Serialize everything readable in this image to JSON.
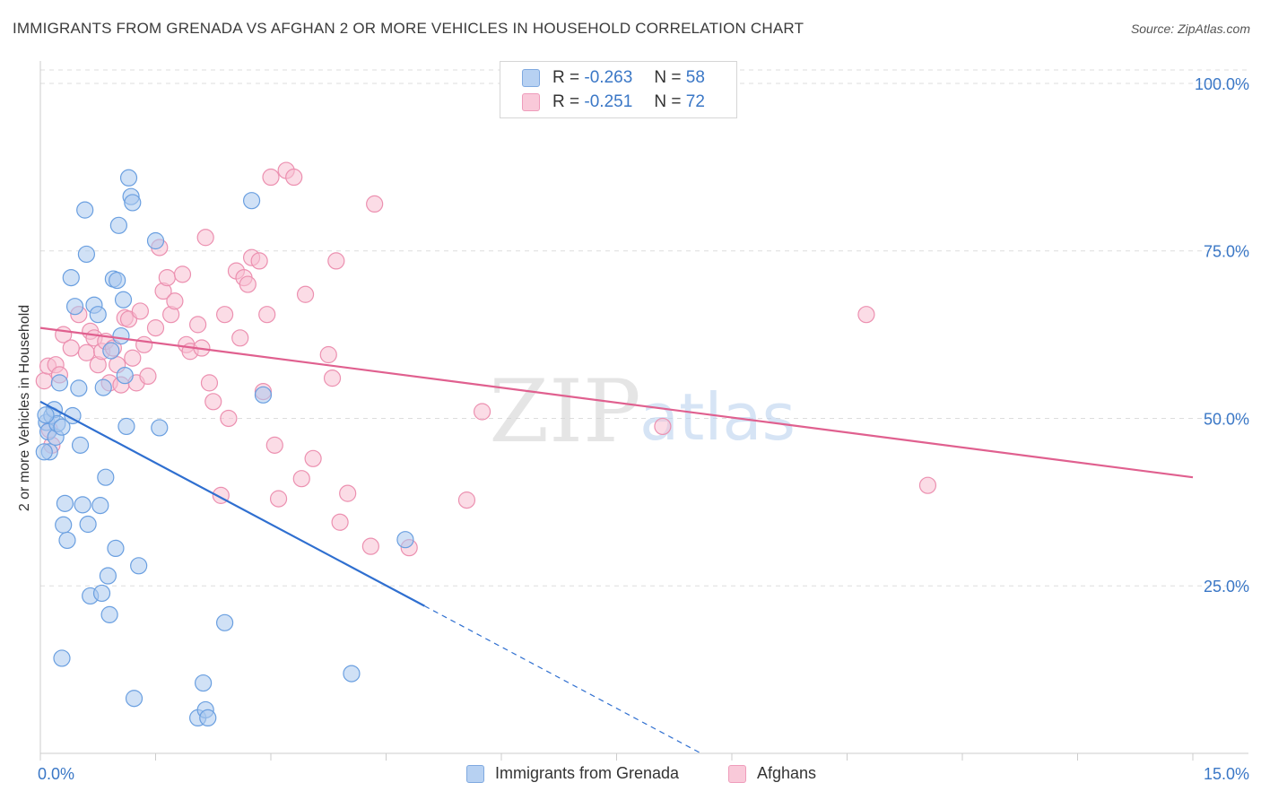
{
  "header": {
    "title": "IMMIGRANTS FROM GRENADA VS AFGHAN 2 OR MORE VEHICLES IN HOUSEHOLD CORRELATION CHART",
    "source": "Source: ZipAtlas.com"
  },
  "watermark": {
    "zip": "ZIP",
    "atlas": "atlas"
  },
  "legend": {
    "rows": [
      {
        "r_label": "R =",
        "r_value": "-0.263",
        "n_label": "N =",
        "n_value": "58"
      },
      {
        "r_label": "R =",
        "r_value": "-0.251",
        "n_label": "N =",
        "n_value": "72"
      }
    ]
  },
  "colors": {
    "blue_fill": "#a9c8ef",
    "blue_stroke": "#6a9fe0",
    "blue_line": "#2f6fd0",
    "pink_fill": "#f7bfd1",
    "pink_stroke": "#ec90b0",
    "pink_line": "#e0608f",
    "axis_label": "#3a77c6",
    "grid": "#dddddd"
  },
  "chart_data": {
    "type": "scatter",
    "title": "IMMIGRANTS FROM GRENADA VS AFGHAN 2 OR MORE VEHICLES IN HOUSEHOLD CORRELATION CHART",
    "xlabel": "",
    "ylabel": "2 or more Vehicles in Household",
    "xlim": [
      0,
      15
    ],
    "ylim": [
      0,
      102
    ],
    "x_ticks": [
      0,
      15
    ],
    "x_tick_labels": [
      "0.0%",
      "15.0%"
    ],
    "y_ticks": [
      25,
      50,
      75,
      100
    ],
    "y_tick_labels": [
      "25.0%",
      "50.0%",
      "75.0%",
      "100.0%"
    ],
    "series": [
      {
        "name": "Immigrants from Grenada",
        "color_key": "blue",
        "R": -0.263,
        "N": 58,
        "trend": {
          "x0": 0.0,
          "y0": 52.5,
          "x1": 5.0,
          "y1": 22.0,
          "dash_to_x": 8.6,
          "dash_to_y": 0.0
        },
        "points": [
          [
            0.08,
            49.4
          ],
          [
            0.1,
            48.0
          ],
          [
            0.12,
            45.0
          ],
          [
            0.15,
            50.4
          ],
          [
            0.18,
            51.3
          ],
          [
            0.2,
            47.2
          ],
          [
            0.22,
            49.2
          ],
          [
            0.25,
            55.3
          ],
          [
            0.28,
            48.7
          ],
          [
            0.3,
            34.1
          ],
          [
            0.32,
            37.3
          ],
          [
            0.35,
            31.8
          ],
          [
            0.4,
            71.0
          ],
          [
            0.42,
            50.4
          ],
          [
            0.45,
            66.7
          ],
          [
            0.5,
            54.5
          ],
          [
            0.52,
            46.0
          ],
          [
            0.55,
            37.1
          ],
          [
            0.58,
            81.1
          ],
          [
            0.6,
            74.5
          ],
          [
            0.62,
            34.2
          ],
          [
            0.65,
            23.5
          ],
          [
            0.7,
            66.9
          ],
          [
            0.75,
            65.5
          ],
          [
            0.78,
            37.0
          ],
          [
            0.8,
            23.9
          ],
          [
            0.82,
            54.6
          ],
          [
            0.85,
            41.2
          ],
          [
            0.88,
            26.5
          ],
          [
            0.9,
            20.7
          ],
          [
            0.92,
            60.1
          ],
          [
            0.95,
            70.8
          ],
          [
            0.98,
            30.6
          ],
          [
            1.0,
            70.6
          ],
          [
            1.02,
            78.8
          ],
          [
            1.05,
            62.3
          ],
          [
            1.08,
            67.7
          ],
          [
            1.1,
            56.4
          ],
          [
            1.12,
            48.8
          ],
          [
            1.15,
            85.9
          ],
          [
            1.18,
            83.1
          ],
          [
            1.2,
            82.2
          ],
          [
            1.22,
            8.2
          ],
          [
            1.28,
            28.0
          ],
          [
            1.5,
            76.5
          ],
          [
            1.55,
            48.6
          ],
          [
            2.05,
            5.3
          ],
          [
            2.12,
            10.5
          ],
          [
            2.15,
            6.5
          ],
          [
            2.18,
            5.3
          ],
          [
            2.4,
            19.5
          ],
          [
            2.75,
            82.5
          ],
          [
            2.9,
            53.5
          ],
          [
            4.05,
            11.9
          ],
          [
            4.75,
            31.9
          ],
          [
            0.05,
            45.0
          ],
          [
            0.07,
            50.5
          ],
          [
            0.28,
            14.2
          ]
        ]
      },
      {
        "name": "Afghans",
        "color_key": "pink",
        "R": -0.251,
        "N": 72,
        "trend": {
          "x0": 0.0,
          "y0": 63.5,
          "x1": 15.0,
          "y1": 41.2
        },
        "points": [
          [
            0.05,
            55.6
          ],
          [
            0.1,
            57.8
          ],
          [
            0.15,
            46.0
          ],
          [
            0.2,
            58.0
          ],
          [
            0.25,
            56.5
          ],
          [
            0.3,
            62.5
          ],
          [
            0.4,
            60.5
          ],
          [
            0.5,
            65.5
          ],
          [
            0.6,
            59.8
          ],
          [
            0.65,
            63.0
          ],
          [
            0.7,
            62.0
          ],
          [
            0.75,
            58.0
          ],
          [
            0.8,
            60.0
          ],
          [
            0.85,
            61.5
          ],
          [
            0.9,
            55.3
          ],
          [
            0.95,
            60.5
          ],
          [
            1.0,
            58.0
          ],
          [
            1.05,
            55.0
          ],
          [
            1.1,
            65.0
          ],
          [
            1.15,
            64.8
          ],
          [
            1.2,
            59.0
          ],
          [
            1.25,
            55.3
          ],
          [
            1.3,
            66.0
          ],
          [
            1.35,
            61.0
          ],
          [
            1.4,
            56.3
          ],
          [
            1.5,
            63.5
          ],
          [
            1.55,
            75.5
          ],
          [
            1.6,
            69.0
          ],
          [
            1.65,
            71.0
          ],
          [
            1.7,
            65.5
          ],
          [
            1.75,
            67.5
          ],
          [
            1.85,
            71.5
          ],
          [
            1.9,
            61.0
          ],
          [
            1.95,
            60.0
          ],
          [
            2.05,
            64.0
          ],
          [
            2.1,
            60.5
          ],
          [
            2.15,
            77.0
          ],
          [
            2.2,
            55.3
          ],
          [
            2.25,
            52.5
          ],
          [
            2.35,
            38.5
          ],
          [
            2.4,
            65.5
          ],
          [
            2.45,
            50.0
          ],
          [
            2.55,
            72.0
          ],
          [
            2.6,
            62.0
          ],
          [
            2.65,
            71.0
          ],
          [
            2.7,
            70.0
          ],
          [
            2.75,
            74.0
          ],
          [
            2.85,
            73.5
          ],
          [
            2.9,
            54.0
          ],
          [
            2.95,
            65.5
          ],
          [
            3.0,
            86.0
          ],
          [
            3.05,
            46.0
          ],
          [
            3.1,
            38.0
          ],
          [
            3.2,
            87.0
          ],
          [
            3.3,
            86.0
          ],
          [
            3.4,
            41.0
          ],
          [
            3.45,
            68.5
          ],
          [
            3.55,
            44.0
          ],
          [
            3.75,
            59.5
          ],
          [
            3.8,
            56.0
          ],
          [
            3.85,
            73.5
          ],
          [
            3.9,
            34.5
          ],
          [
            4.0,
            38.8
          ],
          [
            4.3,
            30.9
          ],
          [
            4.35,
            82.0
          ],
          [
            4.8,
            30.7
          ],
          [
            5.55,
            37.8
          ],
          [
            5.75,
            51.0
          ],
          [
            8.1,
            48.8
          ],
          [
            10.75,
            65.5
          ],
          [
            11.55,
            40.0
          ],
          [
            0.12,
            48.3
          ]
        ]
      }
    ]
  },
  "bottom_legend": [
    "Immigrants from Grenada",
    "Afghans"
  ]
}
